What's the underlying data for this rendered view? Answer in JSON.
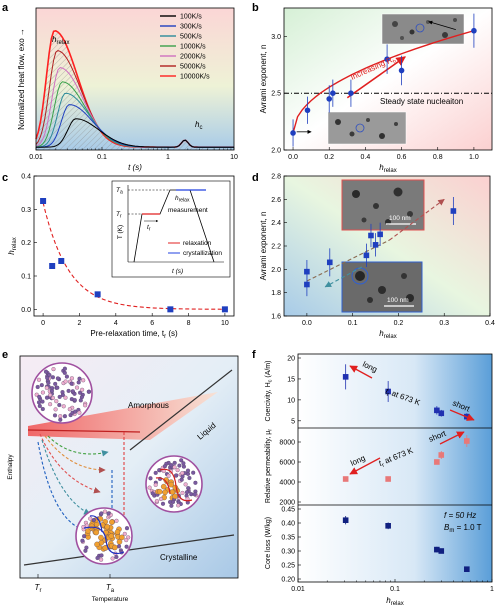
{
  "chart_data": [
    {
      "panel": "a",
      "type": "line",
      "xlabel": "t (s)",
      "ylabel": "Normalized heat flow, exo →",
      "x_scale": "log",
      "xlim": [
        0.01,
        10
      ],
      "x_ticks": [
        "0.01",
        "0.1",
        "1",
        "10"
      ],
      "legend_position": "top-right",
      "series": [
        {
          "name": "100K/s",
          "color": "#000000",
          "peak_t": 0.04,
          "peak": 0.2
        },
        {
          "name": "300K/s",
          "color": "#1f3fbf",
          "peak_t": 0.032,
          "peak": 0.3
        },
        {
          "name": "500K/s",
          "color": "#2b8a9a",
          "peak_t": 0.028,
          "peak": 0.38
        },
        {
          "name": "1000K/s",
          "color": "#3aa04a",
          "peak_t": 0.025,
          "peak": 0.46
        },
        {
          "name": "2000K/s",
          "color": "#d070c0",
          "peak_t": 0.023,
          "peak": 0.56
        },
        {
          "name": "5000K/s",
          "color": "#b02020",
          "peak_t": 0.021,
          "peak": 0.68
        },
        {
          "name": "10000K/s",
          "color": "#ff2020",
          "peak_t": 0.019,
          "peak": 0.82
        }
      ],
      "crystallization_peak_t": 1.8,
      "annotations": [
        "h",
        "relax",
        "h",
        "c"
      ]
    },
    {
      "panel": "b",
      "type": "scatter",
      "xlabel": "h",
      "xlabel_sub": "relax",
      "ylabel": "Avrami exponent, n",
      "xlim": [
        -0.05,
        1.1
      ],
      "ylim": [
        2.0,
        3.25
      ],
      "x_ticks": [
        0.0,
        0.2,
        0.4,
        0.6,
        0.8,
        1.0
      ],
      "y_ticks": [
        2.0,
        2.5,
        3.0
      ],
      "points": [
        {
          "x": 0.0,
          "y": 2.15,
          "err": 0.12
        },
        {
          "x": 0.08,
          "y": 2.35,
          "err": 0.12
        },
        {
          "x": 0.2,
          "y": 2.45,
          "err": 0.12
        },
        {
          "x": 0.22,
          "y": 2.5,
          "err": 0.12
        },
        {
          "x": 0.32,
          "y": 2.5,
          "err": 0.12
        },
        {
          "x": 0.52,
          "y": 2.8,
          "err": 0.13
        },
        {
          "x": 0.6,
          "y": 2.7,
          "err": 0.13
        },
        {
          "x": 1.0,
          "y": 3.05,
          "err": 0.15
        }
      ],
      "reference_line": 2.5,
      "reference_label": "Steady state nucleaiton",
      "trend_label": "Increasing R",
      "trend_label_sub": "h"
    },
    {
      "panel": "c",
      "type": "scatter",
      "xlabel": "Pre-relaxation time, t",
      "xlabel_sub": "r",
      "xlabel_unit": " (s)",
      "ylabel": "h",
      "ylabel_sub": "relax",
      "xlim": [
        -0.5,
        10.5
      ],
      "ylim": [
        -0.02,
        0.4
      ],
      "x_ticks": [
        0,
        2,
        4,
        6,
        8,
        10
      ],
      "y_ticks": [
        0.0,
        0.1,
        0.2,
        0.3,
        0.4
      ],
      "points": [
        {
          "x": 0.0,
          "y": 0.325
        },
        {
          "x": 0.5,
          "y": 0.13
        },
        {
          "x": 1.0,
          "y": 0.145
        },
        {
          "x": 3.0,
          "y": 0.045
        },
        {
          "x": 7.0,
          "y": 0.0
        },
        {
          "x": 10.0,
          "y": 0.0
        }
      ],
      "inset": {
        "ylabel": "T (K)",
        "xlabel": "t (s)",
        "levels": [
          "T",
          "a",
          "T",
          "r"
        ],
        "labels": [
          "t",
          "r",
          "h",
          "relax",
          "measurement"
        ],
        "legend": [
          {
            "name": "relaxation",
            "color": "#e02020"
          },
          {
            "name": "crystallization",
            "color": "#2040e0"
          }
        ]
      }
    },
    {
      "panel": "d",
      "type": "scatter",
      "xlabel": "h",
      "xlabel_sub": "relax",
      "ylabel": "Avrami exponent, n",
      "xlim": [
        -0.05,
        0.4
      ],
      "ylim": [
        1.6,
        2.8
      ],
      "x_ticks": [
        0.0,
        0.1,
        0.2,
        0.3,
        0.4
      ],
      "y_ticks": [
        1.6,
        1.8,
        2.0,
        2.2,
        2.4,
        2.6,
        2.8
      ],
      "points": [
        {
          "x": 0.0,
          "y": 1.87,
          "err": 0.1
        },
        {
          "x": 0.0,
          "y": 1.98,
          "err": 0.1
        },
        {
          "x": 0.05,
          "y": 2.06,
          "err": 0.12
        },
        {
          "x": 0.13,
          "y": 2.12,
          "err": 0.1
        },
        {
          "x": 0.14,
          "y": 2.29,
          "err": 0.1
        },
        {
          "x": 0.15,
          "y": 2.21,
          "err": 0.1
        },
        {
          "x": 0.16,
          "y": 2.3,
          "err": 0.1
        },
        {
          "x": 0.32,
          "y": 2.5,
          "err": 0.12
        }
      ],
      "scalebar_label": "100 nm"
    },
    {
      "panel": "e",
      "type": "diagram",
      "ylabel": "Enthalpy",
      "xlabel": "Temperature",
      "labels": [
        "Amorphous",
        "Liquid",
        "Crystalline"
      ],
      "x_marks": [
        "T",
        "r",
        "T",
        "a"
      ]
    },
    {
      "panel": "f",
      "type": "scatter",
      "xlabel": "h",
      "xlabel_sub": "relax",
      "x_scale": "log",
      "xlim": [
        0.01,
        1
      ],
      "x_ticks": [
        "0.01",
        "0.1",
        "1"
      ],
      "subplots": [
        {
          "ylabel": "Coercivity, H",
          "ylabel_sub": "c",
          "ylabel_unit": " (A/m)",
          "ylim": [
            4,
            20
          ],
          "y_ticks": [
            5,
            10,
            15,
            20
          ],
          "color": "#2030b0",
          "points": [
            {
              "x": 0.031,
              "y": 15.5,
              "err": 3.0
            },
            {
              "x": 0.085,
              "y": 12.0,
              "err": 2.5
            },
            {
              "x": 0.27,
              "y": 7.5,
              "err": 1.0
            },
            {
              "x": 0.3,
              "y": 6.8,
              "err": 0.8
            },
            {
              "x": 0.55,
              "y": 6.0,
              "err": 0.8
            }
          ],
          "annotation_left": "long",
          "annotation_mid": "t",
          "annotation_mid_sub": "r",
          "annotation_mid_rest": " at 673 K",
          "annotation_right": "short"
        },
        {
          "ylabel": "Relative permeability, μ",
          "ylabel_sub": "r",
          "ylim": [
            2000,
            9000
          ],
          "y_ticks": [
            2000,
            4000,
            6000,
            8000
          ],
          "color": "#e87878",
          "points": [
            {
              "x": 0.031,
              "y": 4300,
              "err": 0
            },
            {
              "x": 0.085,
              "y": 4300,
              "err": 0
            },
            {
              "x": 0.27,
              "y": 6000,
              "err": 200
            },
            {
              "x": 0.3,
              "y": 6700,
              "err": 400
            },
            {
              "x": 0.55,
              "y": 8100,
              "err": 600
            }
          ],
          "annotation_left": "long",
          "annotation_mid": "t",
          "annotation_mid_sub": "r",
          "annotation_mid_rest": " at 673 K",
          "annotation_right": "short"
        },
        {
          "ylabel": "Core loss (W/kg)",
          "ylim": [
            0.2,
            0.45
          ],
          "y_ticks": [
            0.2,
            0.25,
            0.3,
            0.35,
            0.4,
            0.45
          ],
          "color": "#102080",
          "points": [
            {
              "x": 0.031,
              "y": 0.41,
              "err": 0.015
            },
            {
              "x": 0.085,
              "y": 0.39,
              "err": 0.012
            },
            {
              "x": 0.27,
              "y": 0.305,
              "err": 0.01
            },
            {
              "x": 0.3,
              "y": 0.3,
              "err": 0.008
            },
            {
              "x": 0.55,
              "y": 0.235,
              "err": 0.006
            }
          ],
          "condition_1": "f = 50 Hz",
          "condition_2": "B",
          "condition_2_sub": "m",
          "condition_2_rest": " = 1.0 T"
        }
      ]
    }
  ],
  "panel_labels": [
    "a",
    "b",
    "c",
    "d",
    "e",
    "f"
  ]
}
